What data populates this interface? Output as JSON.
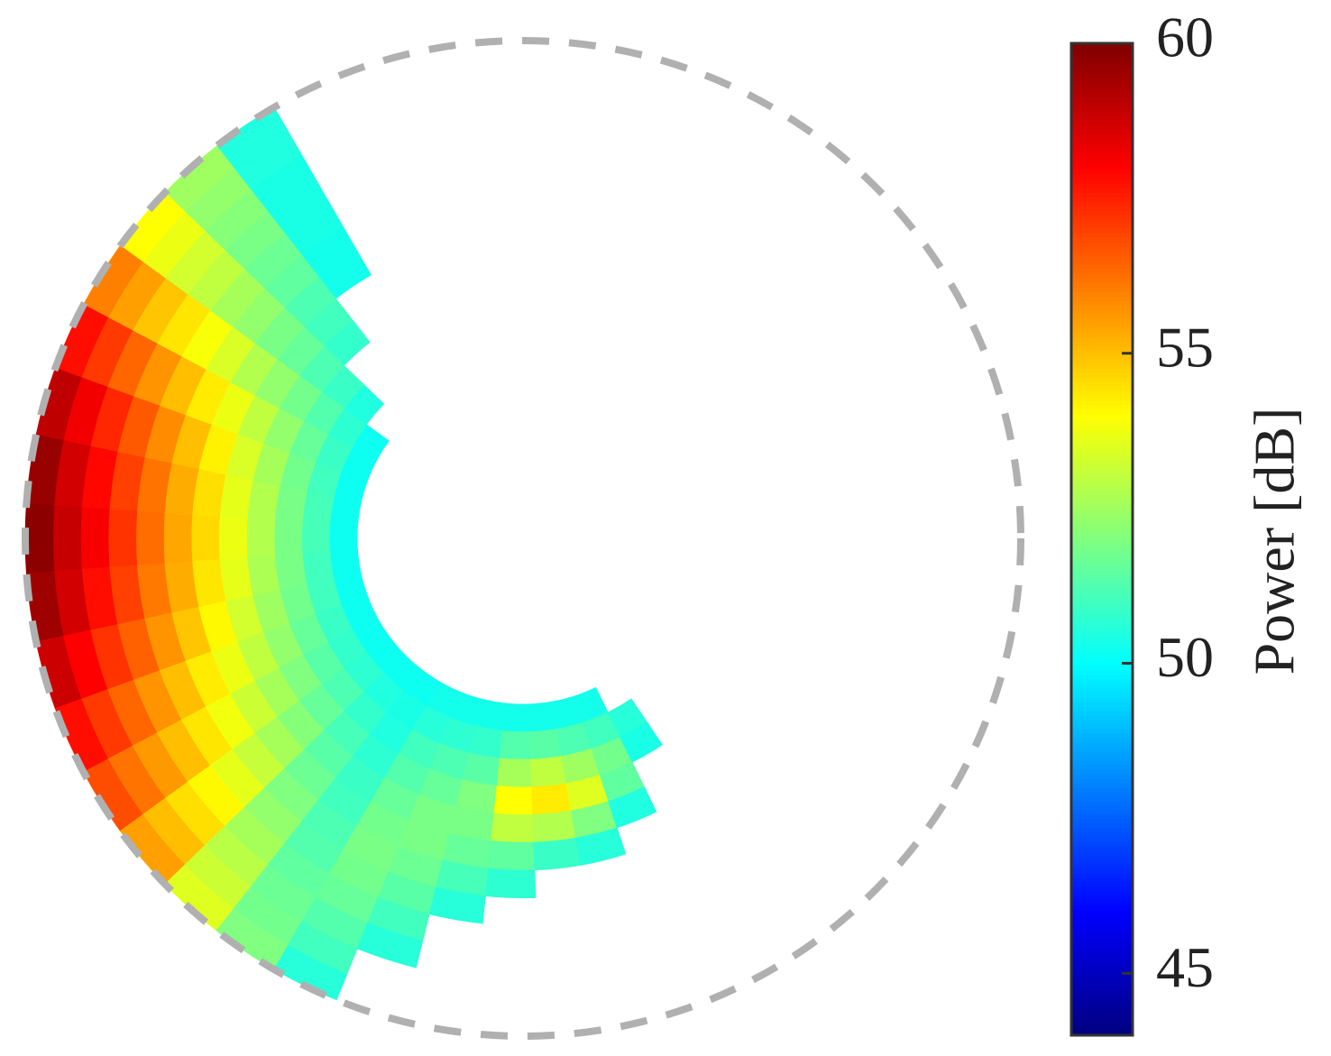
{
  "chart_data": {
    "type": "polar_heatmap",
    "colormap": "jet",
    "clim": [
      44,
      60
    ],
    "colorbar_ticks": [
      45,
      50,
      55,
      60
    ],
    "colorbar_label": "Power [dB]",
    "rlim": [
      0,
      18
    ],
    "boundary_color": "#b0b0b0",
    "theta_edges": [
      120,
      128,
      136,
      144,
      152,
      160,
      168,
      176,
      184,
      192,
      200,
      208,
      216,
      224,
      232,
      240,
      248,
      256,
      264,
      272,
      280,
      288,
      296,
      304
    ],
    "r_edges": [
      6,
      7,
      8,
      9,
      10,
      11,
      12,
      13,
      14,
      15,
      16,
      17,
      18
    ],
    "values": [
      [
        null,
        null,
        null,
        null,
        null,
        50.3,
        50.3,
        50.4,
        50.4,
        50.4,
        50.5,
        50.5
      ],
      [
        null,
        null,
        null,
        50.8,
        51.0,
        51.2,
        51.5,
        51.7,
        51.9,
        52.1,
        52.3,
        52.5
      ],
      [
        null,
        50.5,
        50.9,
        51.2,
        51.6,
        51.9,
        52.3,
        52.6,
        53.0,
        53.3,
        53.7,
        54.0
      ],
      [
        50.2,
        50.7,
        51.3,
        51.8,
        52.3,
        52.8,
        53.4,
        53.9,
        54.4,
        54.9,
        55.5,
        56.0
      ],
      [
        50.2,
        50.9,
        51.6,
        52.3,
        53.0,
        53.7,
        54.3,
        55.0,
        55.7,
        56.4,
        57.1,
        57.8
      ],
      [
        50.2,
        51.0,
        51.8,
        52.6,
        53.4,
        54.2,
        55.0,
        55.8,
        56.6,
        57.4,
        58.2,
        59.0
      ],
      [
        50.2,
        51.1,
        51.9,
        52.8,
        53.6,
        54.5,
        55.3,
        56.2,
        57.0,
        57.9,
        58.7,
        59.6
      ],
      [
        50.2,
        51.1,
        51.9,
        52.8,
        53.7,
        54.6,
        55.4,
        56.3,
        57.2,
        58.1,
        58.9,
        59.8
      ],
      [
        50.2,
        51.0,
        51.9,
        52.7,
        53.6,
        54.4,
        55.3,
        56.1,
        57.0,
        57.8,
        58.7,
        59.5
      ],
      [
        50.2,
        51.0,
        51.8,
        52.5,
        53.3,
        54.1,
        54.9,
        55.7,
        56.5,
        57.2,
        58.0,
        58.8
      ],
      [
        50.2,
        50.9,
        51.6,
        52.3,
        53.0,
        53.7,
        54.3,
        55.0,
        55.7,
        56.4,
        57.1,
        57.8
      ],
      [
        50.2,
        50.8,
        51.4,
        52.0,
        52.6,
        53.2,
        53.8,
        54.4,
        55.0,
        55.6,
        56.2,
        56.8
      ],
      [
        50.2,
        50.7,
        51.2,
        51.6,
        52.1,
        52.6,
        53.1,
        53.6,
        54.1,
        54.5,
        55.0,
        55.5
      ],
      [
        50.2,
        50.5,
        50.8,
        51.1,
        51.4,
        51.7,
        52.0,
        52.3,
        52.6,
        52.9,
        53.2,
        53.5
      ],
      [
        50.2,
        50.4,
        50.5,
        50.7,
        50.9,
        51.0,
        51.2,
        51.3,
        51.5,
        51.7,
        51.8,
        52.0
      ],
      [
        50.3,
        50.6,
        51.0,
        51.3,
        51.6,
        51.8,
        51.9,
        51.8,
        51.6,
        51.3,
        51.0,
        50.6
      ],
      [
        50.3,
        50.7,
        51.2,
        51.6,
        51.9,
        51.9,
        51.7,
        51.4,
        51.0,
        50.6,
        null,
        null
      ],
      [
        50.3,
        50.8,
        51.4,
        52.0,
        51.9,
        51.6,
        51.1,
        50.6,
        null,
        null,
        null,
        null
      ],
      [
        50.3,
        51.3,
        52.6,
        54.0,
        53.0,
        51.5,
        50.7,
        null,
        null,
        null,
        null,
        null
      ],
      [
        50.3,
        51.4,
        53.0,
        54.3,
        52.8,
        50.9,
        null,
        null,
        null,
        null,
        null,
        null
      ],
      [
        50.3,
        51.2,
        52.5,
        53.5,
        52.0,
        50.6,
        null,
        null,
        null,
        null,
        null,
        null
      ],
      [
        50.3,
        51.0,
        51.8,
        51.5,
        50.5,
        null,
        null,
        null,
        null,
        null,
        null,
        null
      ],
      [
        null,
        50.6,
        50.4,
        null,
        null,
        null,
        null,
        null,
        null,
        null,
        null,
        null
      ]
    ]
  }
}
